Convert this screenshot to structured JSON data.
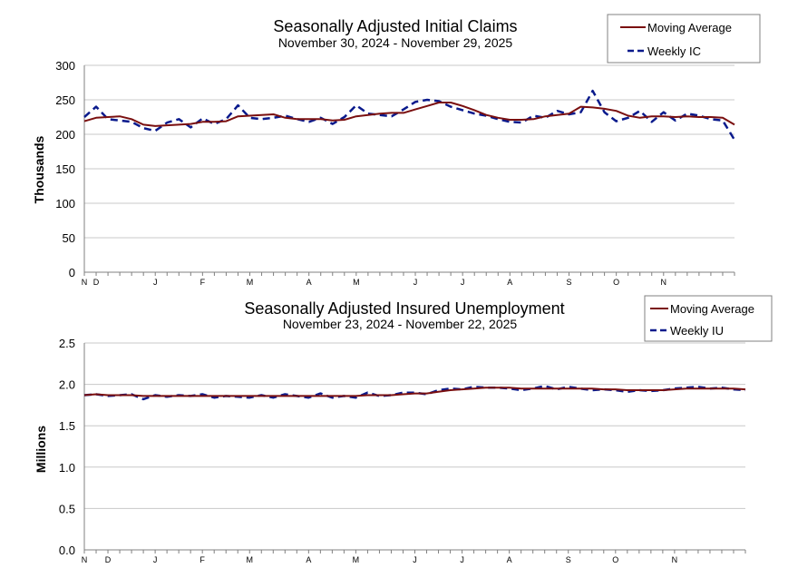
{
  "colors": {
    "moving_average": "#7a0f0f",
    "weekly": "#0a1a8c",
    "grid": "#c8c8c8",
    "axis": "#808080"
  },
  "chart_data": [
    {
      "type": "line",
      "title": "Seasonally Adjusted Initial Claims",
      "subtitle": "November 30, 2024 - November 29, 2025",
      "ylabel": "Thousands",
      "ylim": [
        0,
        300
      ],
      "yticks": [
        "0",
        "50",
        "100",
        "150",
        "200",
        "250",
        "300"
      ],
      "month_labels": [
        "N",
        "D",
        "J",
        "F",
        "M",
        "A",
        "M",
        "J",
        "J",
        "A",
        "S",
        "O",
        "N"
      ],
      "month_label_weeks": [
        0,
        1,
        6,
        10,
        14,
        19,
        23,
        28,
        32,
        36,
        41,
        45,
        49
      ],
      "legend": [
        "Moving Average",
        "Weekly IC"
      ],
      "series": [
        {
          "name": "Weekly IC",
          "style": "dashed",
          "values": [
            225,
            240,
            222,
            220,
            218,
            209,
            205,
            217,
            222,
            210,
            223,
            215,
            222,
            242,
            224,
            222,
            224,
            227,
            222,
            218,
            224,
            215,
            225,
            242,
            230,
            228,
            226,
            236,
            247,
            250,
            248,
            240,
            235,
            230,
            227,
            222,
            218,
            217,
            227,
            224,
            234,
            229,
            232,
            263,
            232,
            219,
            224,
            234,
            218,
            232,
            220,
            230,
            227,
            222,
            220,
            192
          ]
        },
        {
          "name": "Moving Average",
          "style": "solid",
          "values": [
            219,
            224,
            225,
            226,
            222,
            214,
            212,
            213,
            214,
            215,
            218,
            218,
            219,
            226,
            227,
            228,
            229,
            224,
            222,
            222,
            222,
            220,
            221,
            226,
            228,
            230,
            231,
            231,
            236,
            241,
            246,
            246,
            241,
            235,
            228,
            224,
            221,
            221,
            222,
            226,
            228,
            230,
            240,
            239,
            237,
            234,
            227,
            224,
            226,
            226,
            225,
            226,
            225,
            225,
            224,
            214
          ]
        }
      ]
    },
    {
      "type": "line",
      "title": "Seasonally Adjusted Insured Unemployment",
      "subtitle": "November 23, 2024 - November 22, 2025",
      "ylabel": "Millions",
      "ylim": [
        0,
        2.5
      ],
      "yticks": [
        "0.0",
        "0.5",
        "1.0",
        "1.5",
        "2.0",
        "2.5"
      ],
      "month_labels": [
        "N",
        "D",
        "J",
        "F",
        "M",
        "A",
        "M",
        "J",
        "J",
        "A",
        "S",
        "O",
        "N"
      ],
      "month_label_weeks": [
        0,
        2,
        6,
        10,
        14,
        19,
        23,
        28,
        32,
        36,
        41,
        45,
        50
      ],
      "legend": [
        "Moving Average",
        "Weekly IU"
      ],
      "series": [
        {
          "name": "Weekly IU",
          "style": "dashed",
          "values": [
            1.87,
            1.88,
            1.86,
            1.87,
            1.88,
            1.82,
            1.87,
            1.85,
            1.87,
            1.86,
            1.88,
            1.84,
            1.86,
            1.85,
            1.84,
            1.87,
            1.84,
            1.88,
            1.86,
            1.84,
            1.89,
            1.84,
            1.86,
            1.84,
            1.9,
            1.86,
            1.87,
            1.9,
            1.9,
            1.88,
            1.93,
            1.95,
            1.94,
            1.97,
            1.96,
            1.96,
            1.95,
            1.93,
            1.95,
            1.98,
            1.94,
            1.97,
            1.95,
            1.93,
            1.94,
            1.93,
            1.91,
            1.93,
            1.92,
            1.93,
            1.95,
            1.96,
            1.97,
            1.95,
            1.96,
            1.94,
            1.93
          ]
        },
        {
          "name": "Moving Average",
          "style": "solid",
          "values": [
            1.87,
            1.88,
            1.87,
            1.87,
            1.87,
            1.86,
            1.86,
            1.86,
            1.86,
            1.86,
            1.86,
            1.86,
            1.86,
            1.86,
            1.86,
            1.86,
            1.86,
            1.86,
            1.86,
            1.86,
            1.86,
            1.86,
            1.86,
            1.86,
            1.87,
            1.87,
            1.87,
            1.88,
            1.89,
            1.89,
            1.91,
            1.93,
            1.94,
            1.95,
            1.96,
            1.96,
            1.96,
            1.95,
            1.95,
            1.95,
            1.95,
            1.95,
            1.95,
            1.95,
            1.94,
            1.94,
            1.93,
            1.93,
            1.93,
            1.93,
            1.94,
            1.95,
            1.95,
            1.95,
            1.95,
            1.95,
            1.94
          ]
        }
      ]
    }
  ]
}
